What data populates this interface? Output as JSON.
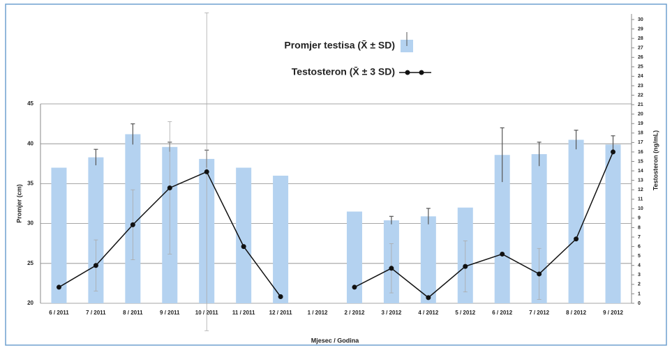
{
  "chart_data": {
    "type": "bar-line",
    "categories": [
      "6 / 2011",
      "7 / 2011",
      "8 / 2011",
      "9 / 2011",
      "10 / 2011",
      "11 / 2011",
      "12 / 2011",
      "1 / 2012",
      "2 / 2012",
      "3 / 2012",
      "4 / 2012",
      "5 / 2012",
      "6 / 2012",
      "7 / 2012",
      "8 / 2012",
      "9 / 2012"
    ],
    "series": [
      {
        "name": "Promjer testisa (X̄ ± SD)",
        "type": "bar",
        "color": "#b4d2f0",
        "values": [
          37.0,
          38.3,
          41.2,
          39.6,
          38.1,
          37.0,
          36.0,
          null,
          31.5,
          30.4,
          30.9,
          32.0,
          38.6,
          38.7,
          40.5,
          39.9
        ],
        "errors": [
          0,
          1.0,
          1.3,
          0.6,
          1.1,
          0,
          0,
          null,
          0,
          0.5,
          1.0,
          0,
          3.4,
          1.5,
          1.2,
          1.1
        ]
      },
      {
        "name": "Testosteron (X̄ ± 3 SD)",
        "type": "line",
        "axis": "y2",
        "color": "#111111",
        "values": [
          1.7,
          4.0,
          8.3,
          12.2,
          13.9,
          6.0,
          0.7,
          null,
          1.7,
          3.7,
          0.6,
          3.9,
          5.2,
          3.1,
          6.8,
          16.0
        ],
        "errors": [
          null,
          2.7,
          3.7,
          7.0,
          16.8,
          null,
          null,
          null,
          null,
          2.6,
          null,
          2.7,
          null,
          2.7,
          null,
          null
        ]
      }
    ],
    "xlabel": "Mjesec / Godina",
    "ylabel": "Promjer (cm)",
    "y2label": "Testosteron (ng/mL)",
    "ylim": [
      20,
      45
    ],
    "yticks": [
      20,
      25,
      30,
      35,
      40,
      45
    ],
    "y2lim": [
      0,
      30
    ],
    "y2ticks": [
      0,
      1,
      2,
      3,
      4,
      5,
      6,
      7,
      8,
      9,
      10,
      11,
      12,
      13,
      14,
      15,
      16,
      17,
      18,
      19,
      20,
      21,
      22,
      23,
      24,
      25,
      26,
      27,
      28,
      29,
      30
    ],
    "grid": true
  }
}
